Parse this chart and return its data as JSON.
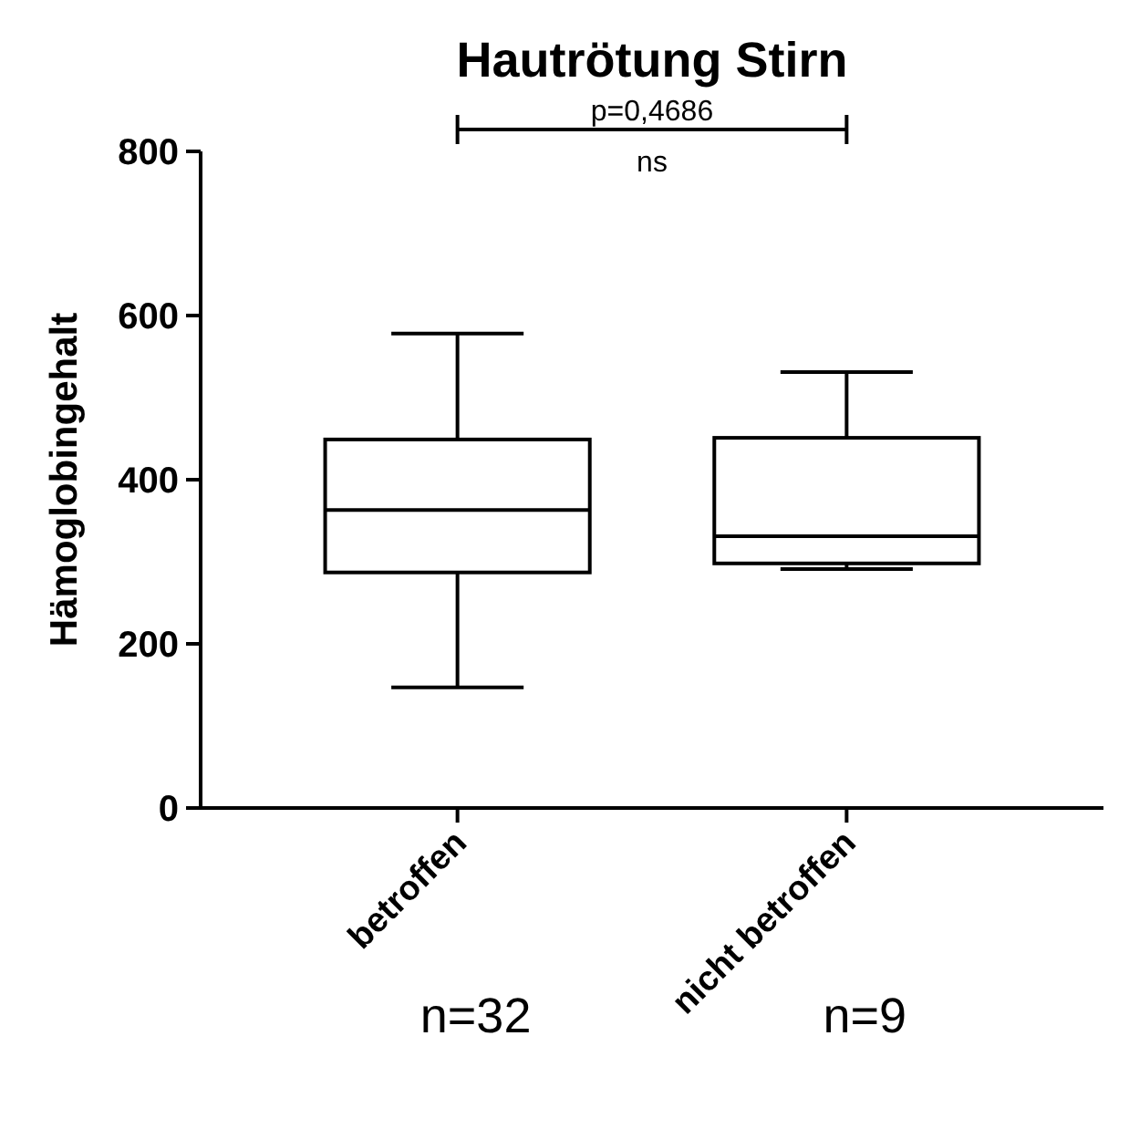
{
  "chart_data": {
    "type": "box",
    "title": "Hautrötung Stirn",
    "ylabel": "Hämoglobingehalt",
    "categories": [
      "betroffen",
      "nicht betroffen"
    ],
    "boxes": [
      {
        "low": 147,
        "q1": 287,
        "median": 363,
        "q3": 449,
        "high": 578
      },
      {
        "low": 291,
        "q1": 298,
        "median": 331,
        "q3": 451,
        "high": 531
      }
    ],
    "ylim": [
      0,
      800
    ],
    "yticks": [
      0,
      200,
      400,
      600,
      800
    ],
    "grid": false,
    "annotations": [
      "p=0,4686",
      "ns",
      "n=32",
      "n=9"
    ]
  }
}
